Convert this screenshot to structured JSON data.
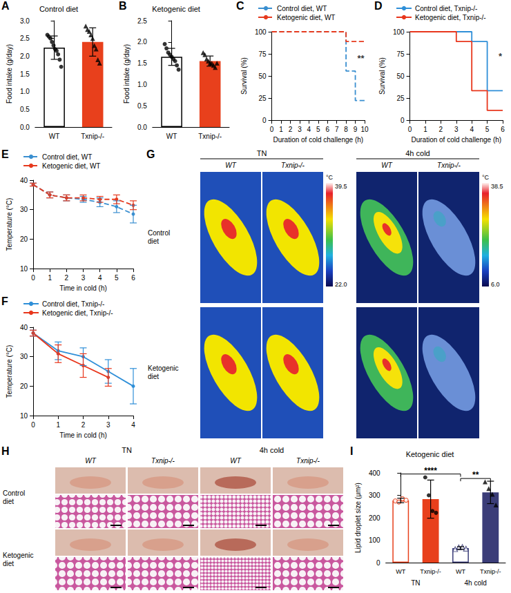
{
  "chart_data": [
    {
      "panel": "A",
      "type": "bar",
      "title": "Control diet",
      "ylabel": "Food intake (g/day)",
      "categories": [
        "WT",
        "Txnip-/-"
      ],
      "values": [
        2.24,
        2.4
      ],
      "errors": [
        0.33,
        0.4
      ],
      "colors": [
        "#ffffff",
        "#e8401c"
      ],
      "points": [
        {
          "marker": "circle",
          "color": "#000000",
          "values": [
            2.6,
            2.55,
            2.5,
            2.4,
            2.3,
            2.2,
            2.15,
            2.05,
            1.9,
            1.7
          ]
        },
        {
          "marker": "triangle",
          "color": "#000000",
          "values": [
            2.85,
            2.75,
            2.7,
            2.6,
            2.5,
            2.3,
            2.2,
            1.9,
            1.8
          ]
        }
      ],
      "ylim": [
        0,
        3
      ],
      "yticks": [
        {
          "value": 0,
          "label": "0.0"
        },
        0.5,
        {
          "value": 1,
          "label": "1.0"
        },
        1.5,
        {
          "value": 2,
          "label": "2.0"
        },
        2.5,
        {
          "value": 3,
          "label": "3.0"
        }
      ]
    },
    {
      "panel": "B",
      "type": "bar",
      "title": "Ketogenic diet",
      "ylabel": "Food intake (g/day)",
      "categories": [
        "WT",
        "Txnip-/-"
      ],
      "values": [
        1.65,
        1.55
      ],
      "errors": [
        0.2,
        0.12
      ],
      "colors": [
        "#ffffff",
        "#e8401c"
      ],
      "points": [
        {
          "marker": "circle",
          "color": "#000000",
          "values": [
            1.95,
            1.85,
            1.75,
            1.7,
            1.65,
            1.6,
            1.55,
            1.45,
            1.35
          ]
        },
        {
          "marker": "triangle",
          "color": "#000000",
          "values": [
            1.75,
            1.7,
            1.6,
            1.55,
            1.5,
            1.5,
            1.45,
            1.4,
            1.5
          ]
        }
      ],
      "ylim": [
        0,
        2.5
      ],
      "yticks": [
        {
          "value": 0,
          "label": "0.0"
        },
        0.5,
        {
          "value": 1,
          "label": "1.0"
        },
        1.5,
        {
          "value": 2,
          "label": "2.0"
        },
        2.5
      ]
    },
    {
      "panel": "C",
      "type": "step",
      "xlabel": "Duration of cold challenge (h)",
      "ylabel": "Survival (%)",
      "legend": "top",
      "series": [
        {
          "name": "Control diet, WT",
          "color": "#3a8fd0",
          "line_style": "dashed",
          "x": [
            0,
            8,
            9,
            10
          ],
          "values": [
            100,
            55.6,
            22.2,
            22.2
          ]
        },
        {
          "name": "Ketogenic diet, WT",
          "color": "#e63a1e",
          "line_style": "dashed",
          "x": [
            0,
            8,
            10
          ],
          "values": [
            100,
            88.9,
            88.9
          ]
        }
      ],
      "annotations": [
        {
          "text": "**",
          "x": 9.6,
          "y": 70
        }
      ],
      "xlim": [
        0,
        10
      ],
      "xticks": [
        0,
        1,
        2,
        3,
        4,
        5,
        6,
        7,
        8,
        9,
        10
      ],
      "ylim": [
        0,
        100
      ],
      "yticks": [
        0,
        25,
        50,
        75,
        100
      ]
    },
    {
      "panel": "D",
      "type": "step",
      "xlabel": "Duration of cold challenge (h)",
      "ylabel": "Survival (%)",
      "legend": "top",
      "series": [
        {
          "name": "Control diet, Txnip-/-",
          "color": "#2f8fd8",
          "line_style": "solid",
          "x": [
            0,
            4,
            5,
            6
          ],
          "values": [
            100,
            88.9,
            33.3,
            33.3
          ]
        },
        {
          "name": "Ketogenic diet, Txnip-/-",
          "color": "#e8361c",
          "line_style": "solid",
          "x": [
            0,
            3,
            4,
            5,
            6
          ],
          "values": [
            100,
            88.9,
            33.3,
            11.1,
            11.1
          ]
        }
      ],
      "annotations": [
        {
          "text": "*",
          "x": 5.85,
          "y": 72
        }
      ],
      "xlim": [
        0,
        6
      ],
      "xticks": [
        0,
        1,
        2,
        3,
        4,
        5,
        6
      ],
      "ylim": [
        0,
        100
      ],
      "yticks": [
        0,
        25,
        50,
        75,
        100
      ]
    },
    {
      "panel": "E",
      "type": "line",
      "xlabel": "Time in cold (h)",
      "ylabel": "Temperature (°C)",
      "legend": "top",
      "series": [
        {
          "name": "Control diet, WT",
          "color": "#3a8fd0",
          "line_style": "dashed",
          "marker": "circle",
          "x": [
            0,
            1,
            2,
            3,
            4,
            5,
            6
          ],
          "values": [
            38.5,
            35,
            34,
            33.5,
            32.5,
            31,
            28.5
          ],
          "errors": [
            0.5,
            1,
            1,
            1,
            1.5,
            2,
            3
          ]
        },
        {
          "name": "Ketogenic diet, WT",
          "color": "#e63a1e",
          "line_style": "dashed",
          "marker": "circle",
          "x": [
            0,
            1,
            2,
            3,
            4,
            5,
            6
          ],
          "values": [
            38.5,
            35,
            34,
            34,
            33.5,
            33.5,
            31.5
          ],
          "errors": [
            0.5,
            1,
            1,
            1,
            1,
            1.5,
            1.5
          ]
        }
      ],
      "xlim": [
        0,
        6
      ],
      "xticks": [
        0,
        1,
        2,
        3,
        4,
        5,
        6
      ],
      "ylim": [
        10,
        40
      ],
      "yticks": [
        10,
        20,
        30,
        40
      ]
    },
    {
      "panel": "F",
      "type": "line",
      "xlabel": "Time in cold (h)",
      "ylabel": "Temperature (°C)",
      "legend": "top",
      "series": [
        {
          "name": "Control diet, Txnip-/-",
          "color": "#2f8fd8",
          "line_style": "solid",
          "marker": "circle",
          "x": [
            0,
            1,
            2,
            3,
            4
          ],
          "values": [
            38,
            32,
            30,
            25,
            20
          ],
          "errors": [
            1,
            3,
            3,
            4,
            6
          ]
        },
        {
          "name": "Ketogenic diet, Txnip-/-",
          "color": "#e8361c",
          "line_style": "solid",
          "marker": "circle",
          "x": [
            0,
            1,
            2,
            3
          ],
          "values": [
            38,
            31,
            27,
            23
          ],
          "errors": [
            1,
            3,
            4,
            3
          ]
        }
      ],
      "xlim": [
        0,
        4
      ],
      "xticks": [
        0,
        1,
        2,
        3,
        4
      ],
      "ylim": [
        10,
        40
      ],
      "yticks": [
        10,
        20,
        30,
        40
      ]
    },
    {
      "panel": "I",
      "type": "bar",
      "title": "Ketogenic diet",
      "ylabel": "Lipid droplet size (μm²)",
      "categories": [
        "WT",
        "Txnip-/-",
        "WT",
        "Txnip-/-"
      ],
      "groups": [
        "TN",
        "4h cold"
      ],
      "values": [
        277,
        283,
        65,
        313
      ],
      "errors": [
        10,
        85,
        6,
        50
      ],
      "colors": [
        "#ffffff",
        "#e8401c",
        "#ffffff",
        "#3b3d78"
      ],
      "points": [
        {
          "marker": "open-circle",
          "color": "#e8401c",
          "values": [
            275,
            270,
            285,
            278
          ]
        },
        {
          "marker": "circle",
          "color": "#000000",
          "values": [
            380,
            300,
            230,
            222
          ]
        },
        {
          "marker": "open-triangle",
          "color": "#3b3d78",
          "values": [
            60,
            68,
            70,
            62
          ]
        },
        {
          "marker": "triangle",
          "color": "#000000",
          "values": [
            360,
            330,
            305,
            257
          ]
        }
      ],
      "annotations": [
        {
          "text": "****",
          "from": 0,
          "to": 2,
          "y": 395
        },
        {
          "text": "**",
          "from": 2,
          "to": 3,
          "y": 375
        }
      ],
      "ylim": [
        0,
        400
      ],
      "yticks": [
        0,
        100,
        200,
        300,
        400
      ]
    }
  ],
  "thermal_images": {
    "panel": "G",
    "groups": [
      "TN",
      "4h cold"
    ],
    "columns": [
      "WT",
      "Txnip-/-"
    ],
    "rows": [
      "Control diet",
      "Ketogenic diet"
    ],
    "colorbars": [
      {
        "unit": "°C",
        "max": 39.5,
        "min": {
          "value": 22,
          "label": "22.0"
        }
      },
      {
        "unit": "°C",
        "max": 38.5,
        "min": {
          "value": 6,
          "label": "6.0"
        }
      }
    ]
  },
  "histology": {
    "panel": "H",
    "groups": [
      "TN",
      "4h cold"
    ],
    "columns": [
      "WT",
      "Txnip-/-"
    ],
    "rows": [
      "Control diet",
      "Ketogenic diet"
    ]
  }
}
